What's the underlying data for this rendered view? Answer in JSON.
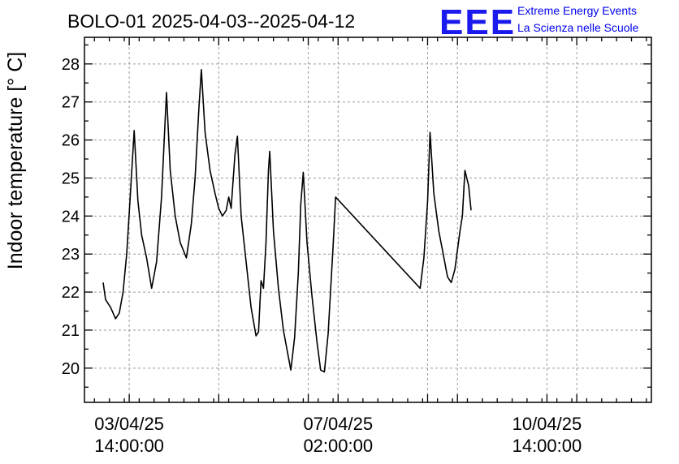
{
  "logo": {
    "mark": "EEE",
    "line1": "Extreme Energy Events",
    "line2": "La Scienza nelle Scuole",
    "color": "#0000ee"
  },
  "chart_data": {
    "type": "line",
    "title": "BOLO-01 2025-04-03--2025-04-12",
    "xlabel": "",
    "ylabel": "Indoor temperature [° C]",
    "ylim": [
      19.1,
      28.7
    ],
    "yticks": [
      20,
      21,
      22,
      23,
      24,
      25,
      26,
      27,
      28
    ],
    "xlim": [
      "2025-04-02 20:00",
      "2025-04-12 08:00"
    ],
    "xticks": [
      {
        "t": "2025-04-03 14:00",
        "line1": "03/04/25",
        "line2": "14:00:00",
        "labeled": true
      },
      {
        "t": "2025-04-05 02:00",
        "line1": "",
        "line2": "",
        "labeled": false
      },
      {
        "t": "2025-04-06 14:00",
        "line1": "",
        "line2": "",
        "labeled": false
      },
      {
        "t": "2025-04-07 02:00",
        "line1": "07/04/25",
        "line2": "02:00:00",
        "labeled": true
      },
      {
        "t": "2025-04-08 14:00",
        "line1": "",
        "line2": "",
        "labeled": false
      },
      {
        "t": "2025-04-09 02:00",
        "line1": "",
        "line2": "",
        "labeled": false
      },
      {
        "t": "2025-04-10 14:00",
        "line1": "10/04/25",
        "line2": "14:00:00",
        "labeled": true
      },
      {
        "t": "2025-04-11 02:00",
        "line1": "",
        "line2": "",
        "labeled": false
      }
    ],
    "grid": true,
    "series": [
      {
        "name": "",
        "color": "#000000",
        "points": [
          [
            "2025-04-03 03:30",
            22.25
          ],
          [
            "2025-04-03 04:30",
            21.8
          ],
          [
            "2025-04-03 06:30",
            21.6
          ],
          [
            "2025-04-03 08:30",
            21.3
          ],
          [
            "2025-04-03 10:00",
            21.45
          ],
          [
            "2025-04-03 11:30",
            22.0
          ],
          [
            "2025-04-03 13:00",
            23.0
          ],
          [
            "2025-04-03 14:30",
            24.6
          ],
          [
            "2025-04-03 16:00",
            26.25
          ],
          [
            "2025-04-03 17:30",
            24.4
          ],
          [
            "2025-04-03 19:00",
            23.5
          ],
          [
            "2025-04-03 21:00",
            22.9
          ],
          [
            "2025-04-03 23:00",
            22.1
          ],
          [
            "2025-04-04 01:00",
            22.8
          ],
          [
            "2025-04-04 03:00",
            24.5
          ],
          [
            "2025-04-04 04:30",
            26.6
          ],
          [
            "2025-04-04 05:00",
            27.25
          ],
          [
            "2025-04-04 06:30",
            25.2
          ],
          [
            "2025-04-04 08:30",
            24.0
          ],
          [
            "2025-04-04 10:30",
            23.3
          ],
          [
            "2025-04-04 13:00",
            22.9
          ],
          [
            "2025-04-04 15:00",
            23.8
          ],
          [
            "2025-04-04 16:30",
            25.0
          ],
          [
            "2025-04-04 18:00",
            26.8
          ],
          [
            "2025-04-04 19:00",
            27.85
          ],
          [
            "2025-04-04 20:30",
            26.2
          ],
          [
            "2025-04-04 22:30",
            25.2
          ],
          [
            "2025-04-05 00:30",
            24.6
          ],
          [
            "2025-04-05 02:00",
            24.2
          ],
          [
            "2025-04-05 03:30",
            24.0
          ],
          [
            "2025-04-05 05:00",
            24.15
          ],
          [
            "2025-04-05 06:00",
            24.5
          ],
          [
            "2025-04-05 07:00",
            24.2
          ],
          [
            "2025-04-05 08:30",
            25.6
          ],
          [
            "2025-04-05 09:30",
            26.1
          ],
          [
            "2025-04-05 11:00",
            24.0
          ],
          [
            "2025-04-05 13:00",
            22.8
          ],
          [
            "2025-04-05 15:00",
            21.6
          ],
          [
            "2025-04-05 17:00",
            20.85
          ],
          [
            "2025-04-05 18:00",
            20.95
          ],
          [
            "2025-04-05 19:00",
            22.3
          ],
          [
            "2025-04-05 20:00",
            22.1
          ],
          [
            "2025-04-05 21:00",
            23.3
          ],
          [
            "2025-04-05 22:00",
            25.2
          ],
          [
            "2025-04-05 22:30",
            25.7
          ],
          [
            "2025-04-06 00:00",
            23.6
          ],
          [
            "2025-04-06 02:00",
            22.1
          ],
          [
            "2025-04-06 04:00",
            21.0
          ],
          [
            "2025-04-06 06:00",
            20.3
          ],
          [
            "2025-04-06 07:00",
            19.95
          ],
          [
            "2025-04-06 08:30",
            20.8
          ],
          [
            "2025-04-06 10:00",
            22.5
          ],
          [
            "2025-04-06 11:00",
            24.3
          ],
          [
            "2025-04-06 12:00",
            25.15
          ],
          [
            "2025-04-06 13:30",
            23.3
          ],
          [
            "2025-04-06 15:30",
            21.9
          ],
          [
            "2025-04-06 17:30",
            20.7
          ],
          [
            "2025-04-06 19:00",
            19.95
          ],
          [
            "2025-04-06 20:30",
            19.9
          ],
          [
            "2025-04-06 22:00",
            20.9
          ],
          [
            "2025-04-07 00:00",
            23.2
          ],
          [
            "2025-04-07 01:00",
            24.5
          ],
          [
            "2025-04-08 11:00",
            22.1
          ],
          [
            "2025-04-08 12:30",
            22.9
          ],
          [
            "2025-04-08 14:00",
            24.4
          ],
          [
            "2025-04-08 15:00",
            26.2
          ],
          [
            "2025-04-08 16:30",
            24.6
          ],
          [
            "2025-04-08 18:30",
            23.6
          ],
          [
            "2025-04-08 20:00",
            23.1
          ],
          [
            "2025-04-08 22:00",
            22.4
          ],
          [
            "2025-04-08 23:30",
            22.25
          ],
          [
            "2025-04-09 01:00",
            22.6
          ],
          [
            "2025-04-09 03:00",
            23.6
          ],
          [
            "2025-04-09 04:00",
            24.0
          ],
          [
            "2025-04-09 05:00",
            25.2
          ],
          [
            "2025-04-09 06:30",
            24.8
          ],
          [
            "2025-04-09 07:30",
            24.15
          ]
        ]
      }
    ]
  }
}
